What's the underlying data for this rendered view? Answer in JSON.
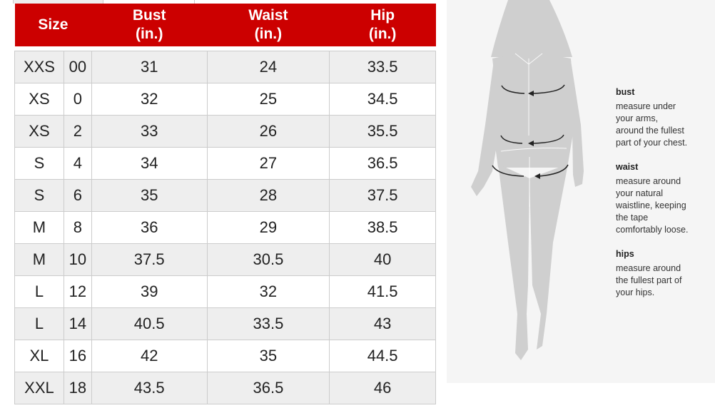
{
  "table": {
    "headers": {
      "size": "Size",
      "bust": [
        "Bust",
        "(in.)"
      ],
      "waist": [
        "Waist",
        "(in.)"
      ],
      "hip": [
        "Hip",
        "(in.)"
      ]
    },
    "rows": [
      [
        "XXS",
        "00",
        "31",
        "24",
        "33.5"
      ],
      [
        "XS",
        "0",
        "32",
        "25",
        "34.5"
      ],
      [
        "XS",
        "2",
        "33",
        "26",
        "35.5"
      ],
      [
        "S",
        "4",
        "34",
        "27",
        "36.5"
      ],
      [
        "S",
        "6",
        "35",
        "28",
        "37.5"
      ],
      [
        "M",
        "8",
        "36",
        "29",
        "38.5"
      ],
      [
        "M",
        "10",
        "37.5",
        "30.5",
        "40"
      ],
      [
        "L",
        "12",
        "39",
        "32",
        "41.5"
      ],
      [
        "L",
        "14",
        "40.5",
        "33.5",
        "43"
      ],
      [
        "XL",
        "16",
        "42",
        "35",
        "44.5"
      ],
      [
        "XXL",
        "18",
        "43.5",
        "36.5",
        "46"
      ]
    ],
    "header_color": "#cc0000"
  },
  "guide": {
    "items": [
      {
        "title": "bust",
        "lines": [
          "measure under",
          "your arms,",
          "around the fullest",
          "part of your chest."
        ]
      },
      {
        "title": "waist",
        "lines": [
          "measure around",
          "your natural",
          "waistline, keeping",
          "the tape",
          "comfortably loose."
        ]
      },
      {
        "title": "hips",
        "lines": [
          "measure around",
          "the fullest part of",
          "your hips."
        ]
      }
    ]
  }
}
